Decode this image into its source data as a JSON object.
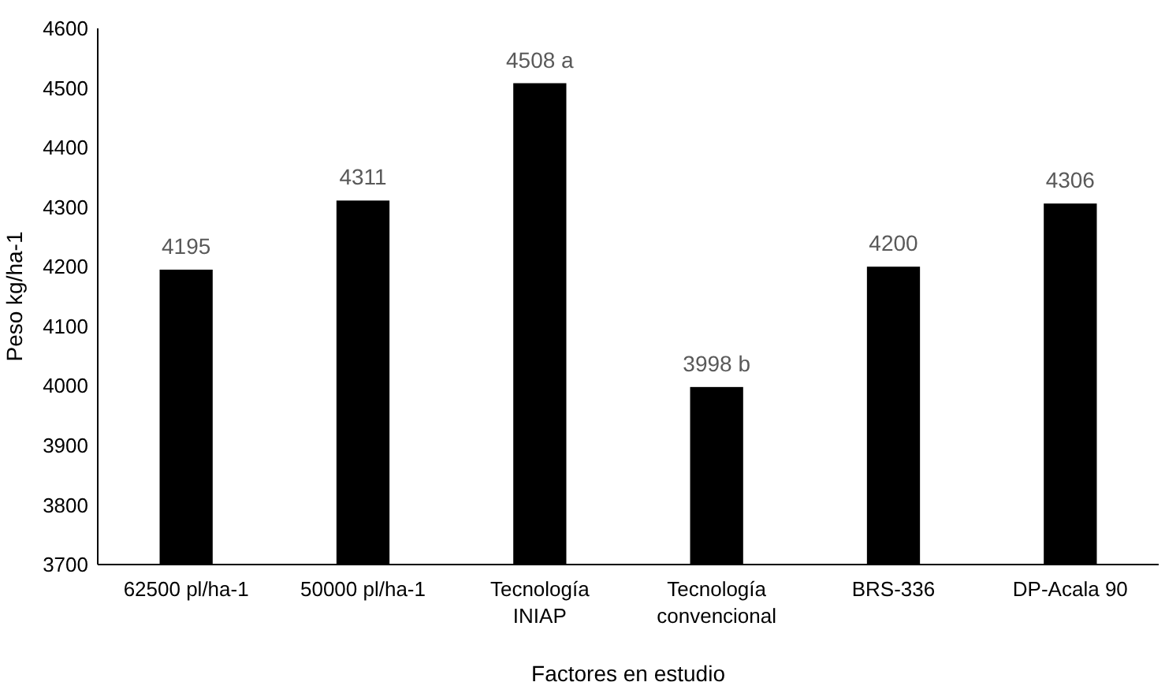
{
  "chart_data": {
    "type": "bar",
    "xlabel": "Factores en estudio",
    "ylabel": "Peso kg/ha-1",
    "categories": [
      "62500 pl/ha-1",
      "50000 pl/ha-1",
      "Tecnología INIAP",
      "Tecnología convencional",
      "BRS-336",
      "DP-Acala 90"
    ],
    "values": [
      4195,
      4311,
      4508,
      3998,
      4200,
      4306
    ],
    "value_labels": [
      "4195",
      "4311",
      "4508 a",
      "3998 b",
      "4200",
      "4306"
    ],
    "color": "#000000",
    "ylim": [
      3700,
      4600
    ],
    "yticks": [
      3700,
      3800,
      3900,
      4000,
      4100,
      4200,
      4300,
      4400,
      4500,
      4600
    ]
  }
}
